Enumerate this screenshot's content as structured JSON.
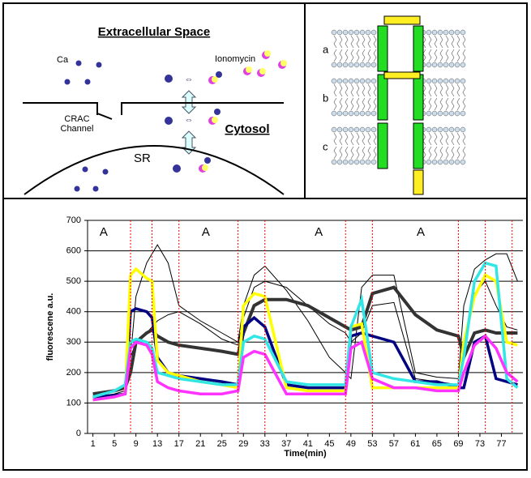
{
  "diagram": {
    "title": "Extracellular Space",
    "ca": "Ca",
    "ionomycin": "Ionomycin",
    "crac_line1": "CRAC",
    "crac_line2": "Channel",
    "cytosol": "Cytosol",
    "sr": "SR",
    "panels": [
      "a",
      "b",
      "c"
    ]
  },
  "chart_data": {
    "type": "line",
    "ylabel": "fluorescene a.u.",
    "xlabel": "Time(min)",
    "x": [
      1,
      5,
      7,
      8,
      9,
      11,
      12,
      13,
      15,
      17,
      21,
      25,
      28,
      29,
      31,
      33,
      37,
      41,
      45,
      48,
      49,
      51,
      53,
      57,
      61,
      65,
      69,
      70,
      72,
      74,
      76,
      78,
      80
    ],
    "series": [
      {
        "color": "#000000",
        "values": [
          110,
          120,
          130,
          250,
          450,
          560,
          590,
          620,
          560,
          420,
          370,
          330,
          300,
          420,
          520,
          550,
          470,
          370,
          250,
          200,
          180,
          480,
          520,
          520,
          200,
          185,
          180,
          420,
          540,
          570,
          590,
          590,
          500
        ]
      },
      {
        "color": "#000000",
        "values": [
          120,
          130,
          140,
          250,
          300,
          330,
          350,
          370,
          390,
          400,
          360,
          310,
          290,
          380,
          480,
          500,
          480,
          420,
          360,
          330,
          300,
          330,
          420,
          430,
          180,
          170,
          160,
          280,
          460,
          500,
          420,
          350,
          340
        ]
      },
      {
        "color": "#333333",
        "values": [
          130,
          140,
          150,
          200,
          300,
          330,
          340,
          320,
          300,
          290,
          280,
          270,
          260,
          330,
          420,
          440,
          440,
          420,
          380,
          350,
          340,
          350,
          460,
          480,
          390,
          340,
          320,
          250,
          330,
          340,
          330,
          330,
          330
        ]
      },
      {
        "color": "#000080",
        "values": [
          120,
          125,
          130,
          400,
          410,
          400,
          380,
          250,
          200,
          190,
          180,
          170,
          160,
          350,
          380,
          350,
          160,
          150,
          150,
          150,
          320,
          330,
          320,
          300,
          170,
          170,
          150,
          150,
          300,
          320,
          180,
          170,
          160
        ]
      },
      {
        "color": "#ffff00",
        "values": [
          110,
          120,
          130,
          520,
          540,
          510,
          500,
          240,
          200,
          190,
          170,
          160,
          150,
          420,
          460,
          450,
          150,
          140,
          140,
          140,
          350,
          360,
          150,
          150,
          150,
          150,
          150,
          300,
          450,
          520,
          500,
          300,
          290
        ]
      },
      {
        "color": "#33e6e6",
        "values": [
          120,
          140,
          160,
          300,
          310,
          300,
          280,
          200,
          190,
          180,
          170,
          160,
          160,
          300,
          320,
          310,
          170,
          160,
          160,
          160,
          350,
          440,
          200,
          180,
          170,
          160,
          160,
          250,
          500,
          560,
          550,
          180,
          150
        ]
      },
      {
        "color": "#ff33ff",
        "values": [
          110,
          120,
          130,
          280,
          300,
          290,
          260,
          170,
          150,
          140,
          130,
          130,
          140,
          250,
          270,
          260,
          130,
          130,
          130,
          130,
          280,
          300,
          180,
          150,
          150,
          140,
          140,
          200,
          290,
          320,
          280,
          200,
          170
        ]
      }
    ],
    "xlim": [
      0,
      81
    ],
    "xticks": [
      1,
      5,
      9,
      13,
      17,
      21,
      25,
      29,
      33,
      37,
      41,
      45,
      49,
      53,
      57,
      61,
      65,
      69,
      73,
      77
    ],
    "ylim": [
      0,
      700
    ],
    "yticks": [
      0,
      100,
      200,
      300,
      400,
      500,
      600,
      700
    ],
    "grid": true,
    "vlines": [
      8,
      12,
      17,
      28,
      33,
      48,
      53,
      69,
      74,
      79
    ],
    "annotations": [
      {
        "text": "A",
        "x": 3,
        "y": 660
      },
      {
        "text": "A",
        "x": 22,
        "y": 660
      },
      {
        "text": "A",
        "x": 43,
        "y": 660
      },
      {
        "text": "A",
        "x": 62,
        "y": 660
      }
    ]
  }
}
